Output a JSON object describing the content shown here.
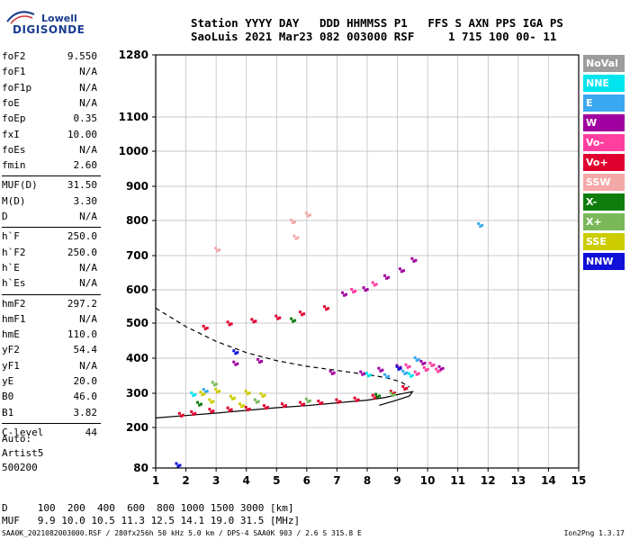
{
  "logo": {
    "line1": "Lowell",
    "line2": "DIGISONDE"
  },
  "header": {
    "line1": "Station YYYY DAY   DDD HHMMSS P1   FFS S AXN PPS IGA PS",
    "line2": "SaoLuis 2021 Mar23 082 003000 RSF     1 715 100 00- 11"
  },
  "parameters": [
    {
      "name": "foF2",
      "value": "9.550"
    },
    {
      "name": "foF1",
      "value": "N/A"
    },
    {
      "name": "foF1p",
      "value": "N/A"
    },
    {
      "name": "foE",
      "value": "N/A"
    },
    {
      "name": "foEp",
      "value": "0.35"
    },
    {
      "name": "fxI",
      "value": "10.00"
    },
    {
      "name": "foEs",
      "value": "N/A"
    },
    {
      "name": "fmin",
      "value": "2.60"
    },
    {
      "name": "MUF(D)",
      "value": "31.50"
    },
    {
      "name": "M(D)",
      "value": "3.30"
    },
    {
      "name": "D",
      "value": "N/A"
    },
    {
      "name": "h`F",
      "value": "250.0"
    },
    {
      "name": "h`F2",
      "value": "250.0"
    },
    {
      "name": "h`E",
      "value": "N/A"
    },
    {
      "name": "h`Es",
      "value": "N/A"
    },
    {
      "name": "hmF2",
      "value": "297.2"
    },
    {
      "name": "hmF1",
      "value": "N/A"
    },
    {
      "name": "hmE",
      "value": "110.0"
    },
    {
      "name": "yF2",
      "value": "54.4"
    },
    {
      "name": "yF1",
      "value": "N/A"
    },
    {
      "name": "yE",
      "value": "20.0"
    },
    {
      "name": "B0",
      "value": "46.0"
    },
    {
      "name": "B1",
      "value": "3.82"
    },
    {
      "name": "C-level",
      "value": "44"
    }
  ],
  "autoscaling": {
    "line1": "Auto:",
    "line2": "Artist5",
    "line3": "500200"
  },
  "legend": [
    {
      "label": "NoVal",
      "color": "#9c9c9c"
    },
    {
      "label": "NNE",
      "color": "#00e5ee"
    },
    {
      "label": "E",
      "color": "#3aa8f0"
    },
    {
      "label": "W",
      "color": "#a000a0"
    },
    {
      "label": "Vo-",
      "color": "#ff3fa0"
    },
    {
      "label": "Vo+",
      "color": "#e00030"
    },
    {
      "label": "SSW",
      "color": "#f5a8a8"
    },
    {
      "label": "X-",
      "color": "#0e7d0e"
    },
    {
      "label": "X+",
      "color": "#7ab85a"
    },
    {
      "label": "SSE",
      "color": "#cccc00"
    },
    {
      "label": "NNW",
      "color": "#1010d8"
    }
  ],
  "chart_data": {
    "type": "scatter",
    "xlabel": "",
    "ylabel": "",
    "xlim": [
      1,
      15
    ],
    "ylim": [
      80,
      1280
    ],
    "y_scale": "nonlinear (ionogram virtual-height)",
    "x_ticks": [
      "1",
      "2",
      "3",
      "4",
      "5",
      "6",
      "7",
      "8",
      "9",
      "10",
      "11",
      "12",
      "13",
      "14",
      "15"
    ],
    "y_ticks": [
      "80",
      "200",
      "300",
      "400",
      "500",
      "600",
      "700",
      "800",
      "900",
      "1000",
      "1100",
      "1280"
    ],
    "grid": true,
    "series": [
      {
        "name": "Vo+",
        "color": "#e00030",
        "points": [
          [
            1.8,
            240
          ],
          [
            2.2,
            245
          ],
          [
            2.8,
            252
          ],
          [
            3.4,
            256
          ],
          [
            4.0,
            258
          ],
          [
            4.6,
            263
          ],
          [
            5.2,
            268
          ],
          [
            5.8,
            272
          ],
          [
            6.4,
            276
          ],
          [
            7.0,
            280
          ],
          [
            7.6,
            285
          ],
          [
            8.2,
            293
          ],
          [
            8.8,
            305
          ],
          [
            9.2,
            318
          ],
          [
            2.6,
            490
          ],
          [
            3.4,
            502
          ],
          [
            4.2,
            510
          ],
          [
            5.0,
            520
          ],
          [
            5.8,
            532
          ],
          [
            6.6,
            548
          ]
        ]
      },
      {
        "name": "Vo-",
        "color": "#ff3fa0",
        "points": [
          [
            9.6,
            360
          ],
          [
            9.9,
            372
          ],
          [
            10.1,
            385
          ],
          [
            10.3,
            368
          ],
          [
            9.3,
            380
          ],
          [
            7.5,
            600
          ],
          [
            8.2,
            620
          ]
        ]
      },
      {
        "name": "W",
        "color": "#a000a0",
        "points": [
          [
            7.8,
            360
          ],
          [
            8.4,
            370
          ],
          [
            9.0,
            378
          ],
          [
            9.8,
            390
          ],
          [
            10.4,
            375
          ],
          [
            7.2,
            590
          ],
          [
            7.9,
            605
          ],
          [
            8.6,
            640
          ],
          [
            9.1,
            660
          ],
          [
            9.5,
            690
          ],
          [
            3.6,
            388
          ],
          [
            4.4,
            395
          ],
          [
            6.8,
            362
          ]
        ]
      },
      {
        "name": "E",
        "color": "#3aa8f0",
        "points": [
          [
            8.6,
            352
          ],
          [
            9.2,
            362
          ],
          [
            9.6,
            400
          ],
          [
            2.6,
            310
          ],
          [
            11.7,
            790
          ]
        ]
      },
      {
        "name": "NNE",
        "color": "#00e5ee",
        "points": [
          [
            8.0,
            356
          ],
          [
            9.4,
            355
          ],
          [
            2.2,
            300
          ]
        ]
      },
      {
        "name": "SSE",
        "color": "#cccc00",
        "points": [
          [
            2.5,
            302
          ],
          [
            3.0,
            310
          ],
          [
            3.5,
            290
          ],
          [
            4.0,
            305
          ],
          [
            4.5,
            298
          ],
          [
            2.8,
            280
          ],
          [
            3.8,
            268
          ]
        ]
      },
      {
        "name": "X+",
        "color": "#7ab85a",
        "points": [
          [
            2.9,
            330
          ],
          [
            4.3,
            280
          ],
          [
            8.8,
            300
          ],
          [
            6.0,
            282
          ]
        ]
      },
      {
        "name": "X-",
        "color": "#0e7d0e",
        "points": [
          [
            5.5,
            512
          ],
          [
            2.4,
            272
          ],
          [
            8.3,
            296
          ]
        ]
      },
      {
        "name": "SSW",
        "color": "#f5a8a8",
        "points": [
          [
            5.5,
            800
          ],
          [
            6.0,
            820
          ],
          [
            5.6,
            755
          ],
          [
            3.0,
            720
          ]
        ]
      },
      {
        "name": "NNW",
        "color": "#1010d8",
        "points": [
          [
            1.7,
            92
          ],
          [
            3.6,
            420
          ],
          [
            9.0,
            375
          ]
        ]
      }
    ],
    "curves": [
      {
        "name": "profile_solid",
        "style": "solid",
        "points": [
          [
            1,
            228
          ],
          [
            2,
            235
          ],
          [
            3,
            242
          ],
          [
            4,
            250
          ],
          [
            5,
            258
          ],
          [
            6,
            264
          ],
          [
            7,
            272
          ],
          [
            8,
            280
          ],
          [
            8.6,
            288
          ],
          [
            9.1,
            298
          ],
          [
            9.5,
            305
          ],
          [
            9.4,
            292
          ],
          [
            8.9,
            278
          ],
          [
            8.4,
            265
          ]
        ]
      },
      {
        "name": "profile_dashed",
        "style": "dashed",
        "points": [
          [
            1,
            545
          ],
          [
            2,
            490
          ],
          [
            3,
            448
          ],
          [
            4,
            416
          ],
          [
            5,
            393
          ],
          [
            6,
            377
          ],
          [
            7,
            365
          ],
          [
            8,
            353
          ],
          [
            8.6,
            345
          ],
          [
            9.1,
            333
          ],
          [
            9.4,
            318
          ]
        ]
      }
    ]
  },
  "bottom_table": {
    "distance_row": "D     100  200  400  600  800 1000 1500 3000 [km]",
    "muf_row": "MUF   9.9 10.0 10.5 11.3 12.5 14.1 19.0 31.5 [MHz]"
  },
  "footer": {
    "info": "SAA0K_2021082003000.RSF / 280fx256h 50 kHz 5.0 km / DPS-4 SAA0K 903 / 2.6 S 315.8 E",
    "version": "Ion2Png 1.3.17"
  }
}
